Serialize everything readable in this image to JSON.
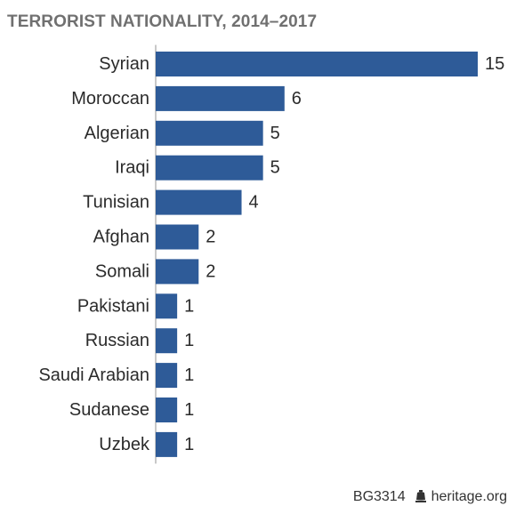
{
  "chart_data": {
    "type": "bar",
    "orientation": "horizontal",
    "title": "TERRORIST NATIONALITY, 2014–2017",
    "categories": [
      "Syrian",
      "Moroccan",
      "Algerian",
      "Iraqi",
      "Tunisian",
      "Afghan",
      "Somali",
      "Pakistani",
      "Russian",
      "Saudi Arabian",
      "Sudanese",
      "Uzbek"
    ],
    "values": [
      15,
      6,
      5,
      5,
      4,
      2,
      2,
      1,
      1,
      1,
      1,
      1
    ],
    "xlim": [
      0,
      15
    ],
    "grid": false,
    "legend": "none",
    "bar_color": "#2e5b98",
    "axis_color": "#c8c8c8"
  },
  "footer": {
    "code": "BG3314",
    "source": "heritage.org",
    "icon": "liberty-bell-icon"
  }
}
